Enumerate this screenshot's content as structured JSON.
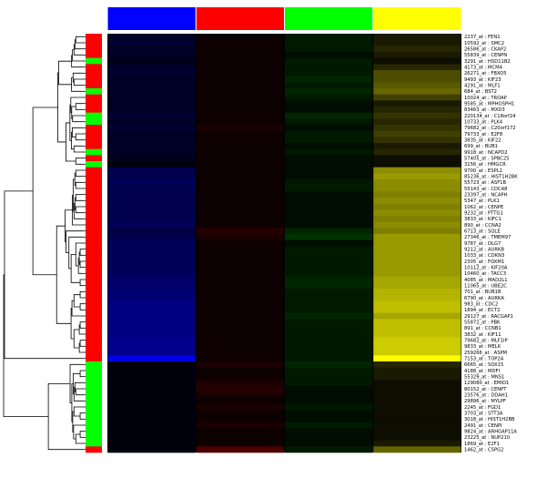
{
  "chart_data": {
    "type": "heatmap",
    "title": "",
    "xlabel": "",
    "ylabel": "",
    "grid": false,
    "legend": "none",
    "column_groups": [
      {
        "color": "#0000ff"
      },
      {
        "color": "#ff0000"
      },
      {
        "color": "#00ff00"
      },
      {
        "color": "#ffff00"
      }
    ],
    "row_cluster_colors": {
      "cluster_a": "#ff0000",
      "cluster_b": "#00ff00"
    },
    "rows": [
      {
        "label": "2237_at : FEN1",
        "cluster": "cluster_a",
        "values": [
          0.15,
          0.05,
          0.1,
          0.1
        ]
      },
      {
        "label": "10592_at : SMC2",
        "cluster": "cluster_a",
        "values": [
          0.2,
          0.05,
          0.1,
          0.1
        ]
      },
      {
        "label": "26586_at : CKAP2",
        "cluster": "cluster_a",
        "values": [
          0.15,
          0.05,
          0.1,
          0.15
        ]
      },
      {
        "label": "55839_at : CENPN",
        "cluster": "cluster_a",
        "values": [
          0.15,
          0.05,
          0.05,
          0.1
        ]
      },
      {
        "label": "3291_at : HSD11B2",
        "cluster": "cluster_b",
        "values": [
          0.1,
          0.05,
          0.1,
          0.05
        ]
      },
      {
        "label": "4173_at : MCM4",
        "cluster": "cluster_a",
        "values": [
          0.15,
          0.05,
          0.1,
          0.15
        ]
      },
      {
        "label": "26271_at : FBXO5",
        "cluster": "cluster_a",
        "values": [
          0.2,
          0.05,
          0.1,
          0.3
        ]
      },
      {
        "label": "9493_at : KIF23",
        "cluster": "cluster_a",
        "values": [
          0.15,
          0.05,
          0.15,
          0.3
        ]
      },
      {
        "label": "4291_at : MLF1",
        "cluster": "cluster_a",
        "values": [
          0.15,
          0.05,
          0.1,
          0.35
        ]
      },
      {
        "label": "684_at : BST2",
        "cluster": "cluster_b",
        "values": [
          0.15,
          0.05,
          0.15,
          0.4
        ]
      },
      {
        "label": "10024_at : TROAP",
        "cluster": "cluster_a",
        "values": [
          0.15,
          0.05,
          0.1,
          0.25
        ]
      },
      {
        "label": "9585_at : MPHOSPH1",
        "cluster": "cluster_a",
        "values": [
          0.15,
          0.05,
          0.05,
          0.1
        ]
      },
      {
        "label": "83463_at : MXD3",
        "cluster": "cluster_a",
        "values": [
          0.15,
          0.05,
          0.05,
          0.15
        ]
      },
      {
        "label": "220134_at : C18orf24",
        "cluster": "cluster_b",
        "values": [
          0.2,
          0.05,
          0.15,
          0.2
        ]
      },
      {
        "label": "10733_at : PLK4",
        "cluster": "cluster_b",
        "values": [
          0.15,
          0.05,
          0.1,
          0.15
        ]
      },
      {
        "label": "79682_at : C20orf172",
        "cluster": "cluster_a",
        "values": [
          0.2,
          0.1,
          0.05,
          0.2
        ]
      },
      {
        "label": "79733_at : E2F8",
        "cluster": "cluster_a",
        "values": [
          0.15,
          0.05,
          0.1,
          0.25
        ]
      },
      {
        "label": "3835_at : KIF22",
        "cluster": "cluster_a",
        "values": [
          0.15,
          0.05,
          0.1,
          0.2
        ]
      },
      {
        "label": "699_at : BUB1",
        "cluster": "cluster_a",
        "values": [
          0.15,
          0.05,
          0.05,
          0.1
        ]
      },
      {
        "label": "9918_at : NCAPD2",
        "cluster": "cluster_b",
        "values": [
          0.15,
          0.05,
          0.1,
          0.15
        ]
      },
      {
        "label": "57405_at : SPBC25",
        "cluster": "cluster_a",
        "values": [
          0.1,
          0.05,
          0.05,
          0.05
        ]
      },
      {
        "label": "3156_at : HMGCR",
        "cluster": "cluster_b",
        "values": [
          0.05,
          0.05,
          0.05,
          0.05
        ]
      },
      {
        "label": "9700_at : ESPL1",
        "cluster": "cluster_a",
        "values": [
          0.3,
          0.05,
          0.05,
          0.55
        ]
      },
      {
        "label": "85236_at : HIST1H2BK",
        "cluster": "cluster_a",
        "values": [
          0.3,
          0.05,
          0.05,
          0.6
        ]
      },
      {
        "label": "55723_at : ASF1B",
        "cluster": "cluster_a",
        "values": [
          0.35,
          0.05,
          0.1,
          0.55
        ]
      },
      {
        "label": "55143_at : CDCA8",
        "cluster": "cluster_a",
        "values": [
          0.3,
          0.05,
          0.1,
          0.55
        ]
      },
      {
        "label": "23397_at : NCAPH",
        "cluster": "cluster_a",
        "values": [
          0.3,
          0.05,
          0.05,
          0.5
        ]
      },
      {
        "label": "5347_at : PLK1",
        "cluster": "cluster_a",
        "values": [
          0.3,
          0.05,
          0.05,
          0.55
        ]
      },
      {
        "label": "1062_at : CENPE",
        "cluster": "cluster_a",
        "values": [
          0.3,
          0.05,
          0.05,
          0.5
        ]
      },
      {
        "label": "9232_at : PTTG1",
        "cluster": "cluster_a",
        "values": [
          0.3,
          0.05,
          0.05,
          0.55
        ]
      },
      {
        "label": "3833_at : KIFC1",
        "cluster": "cluster_a",
        "values": [
          0.3,
          0.05,
          0.05,
          0.5
        ]
      },
      {
        "label": "890_at : CCNA2",
        "cluster": "cluster_a",
        "values": [
          0.35,
          0.05,
          0.05,
          0.55
        ]
      },
      {
        "label": "6713_at : SQLE",
        "cluster": "cluster_a",
        "values": [
          0.25,
          0.15,
          0.15,
          0.5
        ]
      },
      {
        "label": "27346_at : TMEM97",
        "cluster": "cluster_a",
        "values": [
          0.3,
          0.1,
          0.2,
          0.6
        ]
      },
      {
        "label": "9787_at : DLG7",
        "cluster": "cluster_a",
        "values": [
          0.35,
          0.05,
          0.05,
          0.6
        ]
      },
      {
        "label": "9212_at : AURKB",
        "cluster": "cluster_a",
        "values": [
          0.35,
          0.05,
          0.1,
          0.6
        ]
      },
      {
        "label": "1033_at : CDKN3",
        "cluster": "cluster_a",
        "values": [
          0.35,
          0.05,
          0.1,
          0.6
        ]
      },
      {
        "label": "2305_at : FOXM1",
        "cluster": "cluster_a",
        "values": [
          0.35,
          0.05,
          0.1,
          0.6
        ]
      },
      {
        "label": "10112_at : KIF20A",
        "cluster": "cluster_a",
        "values": [
          0.35,
          0.05,
          0.1,
          0.6
        ]
      },
      {
        "label": "10460_at : TACC3",
        "cluster": "cluster_a",
        "values": [
          0.35,
          0.05,
          0.1,
          0.6
        ]
      },
      {
        "label": "4085_at : MAD2L1",
        "cluster": "cluster_a",
        "values": [
          0.4,
          0.05,
          0.15,
          0.65
        ]
      },
      {
        "label": "11065_at : UBE2C",
        "cluster": "cluster_a",
        "values": [
          0.4,
          0.05,
          0.15,
          0.65
        ]
      },
      {
        "label": "701_at : BUB1B",
        "cluster": "cluster_a",
        "values": [
          0.45,
          0.05,
          0.1,
          0.7
        ]
      },
      {
        "label": "6790_at : AURKA",
        "cluster": "cluster_a",
        "values": [
          0.45,
          0.05,
          0.1,
          0.7
        ]
      },
      {
        "label": "983_at : CDC2",
        "cluster": "cluster_a",
        "values": [
          0.5,
          0.05,
          0.1,
          0.75
        ]
      },
      {
        "label": "1894_at : ECT2",
        "cluster": "cluster_a",
        "values": [
          0.5,
          0.05,
          0.1,
          0.75
        ]
      },
      {
        "label": "29127_at : RACGAP1",
        "cluster": "cluster_a",
        "values": [
          0.5,
          0.05,
          0.15,
          0.65
        ]
      },
      {
        "label": "55872_at : PBK",
        "cluster": "cluster_a",
        "values": [
          0.5,
          0.05,
          0.1,
          0.75
        ]
      },
      {
        "label": "891_at : CCNB1",
        "cluster": "cluster_a",
        "values": [
          0.5,
          0.05,
          0.1,
          0.75
        ]
      },
      {
        "label": "3832_at : KIF11",
        "cluster": "cluster_a",
        "values": [
          0.5,
          0.05,
          0.1,
          0.75
        ]
      },
      {
        "label": "79682_at : MLF1IP",
        "cluster": "cluster_a",
        "values": [
          0.55,
          0.05,
          0.1,
          0.8
        ]
      },
      {
        "label": "9833_at : MELK",
        "cluster": "cluster_a",
        "values": [
          0.55,
          0.05,
          0.1,
          0.8
        ]
      },
      {
        "label": "259266_at : ASPM",
        "cluster": "cluster_a",
        "values": [
          0.55,
          0.05,
          0.1,
          0.8
        ]
      },
      {
        "label": "7153_at : TOP2A",
        "cluster": "cluster_a",
        "values": [
          0.9,
          0.05,
          0.1,
          1.0
        ]
      },
      {
        "label": "6665_at : SOX15",
        "cluster": "cluster_b",
        "values": [
          0.05,
          0.1,
          0.15,
          0.15
        ]
      },
      {
        "label": "4188_at : MDFI",
        "cluster": "cluster_b",
        "values": [
          0.05,
          0.05,
          0.1,
          0.1
        ]
      },
      {
        "label": "55329_at : MNS1",
        "cluster": "cluster_b",
        "values": [
          0.05,
          0.05,
          0.1,
          0.1
        ]
      },
      {
        "label": "129080_at : EMID1",
        "cluster": "cluster_b",
        "values": [
          0.05,
          0.1,
          0.1,
          0.05
        ]
      },
      {
        "label": "80152_at : CENPT",
        "cluster": "cluster_b",
        "values": [
          0.05,
          0.15,
          0.05,
          0.05
        ]
      },
      {
        "label": "23576_at : DDAH1",
        "cluster": "cluster_b",
        "values": [
          0.05,
          0.1,
          0.05,
          0.05
        ]
      },
      {
        "label": "29896_at : MYLPF",
        "cluster": "cluster_b",
        "values": [
          0.05,
          0.05,
          0.05,
          0.05
        ]
      },
      {
        "label": "2245_at : FGD1",
        "cluster": "cluster_b",
        "values": [
          0.05,
          0.1,
          0.1,
          0.05
        ]
      },
      {
        "label": "3703_at : STT3A",
        "cluster": "cluster_b",
        "values": [
          0.05,
          0.05,
          0.05,
          0.05
        ]
      },
      {
        "label": "3018_at : HIST1H2BB",
        "cluster": "cluster_b",
        "values": [
          0.05,
          0.05,
          0.05,
          0.05
        ]
      },
      {
        "label": "2491_at : CENPI",
        "cluster": "cluster_b",
        "values": [
          0.05,
          0.1,
          0.1,
          0.05
        ]
      },
      {
        "label": "9824_at : ARHGAP11A",
        "cluster": "cluster_b",
        "values": [
          0.05,
          0.05,
          0.05,
          0.05
        ]
      },
      {
        "label": "23225_at : NUP210",
        "cluster": "cluster_b",
        "values": [
          0.05,
          0.05,
          0.05,
          0.05
        ]
      },
      {
        "label": "1869_at : E2F1",
        "cluster": "cluster_b",
        "values": [
          0.05,
          0.05,
          0.05,
          0.1
        ]
      },
      {
        "label": "1462_at : CSPG2",
        "cluster": "cluster_a",
        "values": [
          0.05,
          0.3,
          0.1,
          0.4
        ]
      }
    ]
  }
}
